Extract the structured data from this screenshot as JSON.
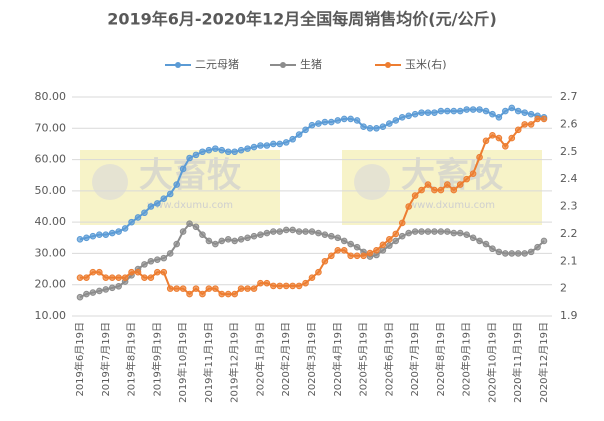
{
  "chart_data": {
    "type": "line",
    "title": "2019年6月-2020年12月全国每周销售均价(元/公斤)",
    "watermarks": [
      "大畜牧",
      "www.dxumu.com"
    ],
    "categories": [
      "2019年6月19日",
      null,
      null,
      null,
      "2019年7月19日",
      null,
      null,
      null,
      "2019年8月19日",
      null,
      null,
      null,
      "2019年9月19日",
      null,
      null,
      null,
      "2019年10月19日",
      null,
      null,
      null,
      "2019年11月19日",
      null,
      null,
      null,
      "2019年12月19日",
      null,
      null,
      null,
      "2020年1月19日",
      null,
      null,
      null,
      "2020年2月19日",
      null,
      null,
      null,
      "2020年3月19日",
      null,
      null,
      null,
      "2020年4月19日",
      null,
      null,
      null,
      "2020年5月19日",
      null,
      null,
      null,
      "2020年6月19日",
      null,
      null,
      null,
      "2020年7月19日",
      null,
      null,
      null,
      "2020年8月19日",
      null,
      null,
      null,
      "2020年9月19日",
      null,
      null,
      null,
      "2020年10月19日",
      null,
      null,
      null,
      "2020年11月19日",
      null,
      null,
      null,
      "2020年12月19日"
    ],
    "series": [
      {
        "name": "二元母猪",
        "color": "#5b9bd5",
        "values": [
          34.5,
          35,
          35.5,
          36,
          36,
          36.5,
          37,
          38,
          40,
          41.5,
          43,
          45,
          46,
          47.5,
          49,
          52,
          57,
          60.5,
          61.5,
          62.5,
          63,
          63.5,
          63,
          62.5,
          62.5,
          63,
          63.5,
          64,
          64.5,
          64.5,
          65,
          65,
          65.5,
          66.5,
          68,
          69.5,
          71,
          71.5,
          72,
          72,
          72.5,
          73,
          73,
          72.5,
          70.5,
          70,
          70,
          70.5,
          71.5,
          72.5,
          73.5,
          74,
          74.5,
          75,
          75,
          75,
          75.5,
          75.5,
          75.5,
          75.5,
          76,
          76,
          76,
          75.5,
          74.5,
          73.5,
          75.5,
          76.5,
          75.5,
          75,
          74.5,
          74,
          73.5
        ]
      },
      {
        "name": "生猪",
        "color": "#8c8c8c",
        "values": [
          16,
          17,
          17.5,
          18,
          18.5,
          19,
          19.5,
          21,
          23,
          25,
          26.5,
          27.5,
          28,
          28.5,
          30,
          33,
          37,
          39.5,
          38.5,
          36,
          34,
          33,
          34,
          34.5,
          34,
          34.5,
          35,
          35.5,
          36,
          36.5,
          37,
          37,
          37.5,
          37.5,
          37,
          37,
          37,
          36.5,
          36,
          35.5,
          35,
          34,
          33,
          32,
          30.5,
          29,
          29.5,
          31,
          32.5,
          34,
          35.5,
          36.5,
          37,
          37,
          37,
          37,
          37,
          37,
          36.5,
          36.5,
          36,
          35,
          34,
          33,
          31.5,
          30.5,
          30,
          30,
          30,
          30,
          30.5,
          32,
          34
        ]
      },
      {
        "name": "玉米(右)",
        "color": "#ed7d31",
        "axis": "y2",
        "values": [
          2.04,
          2.04,
          2.06,
          2.06,
          2.04,
          2.04,
          2.04,
          2.04,
          2.06,
          2.06,
          2.04,
          2.04,
          2.06,
          2.06,
          2.0,
          2.0,
          2.0,
          1.98,
          2.0,
          1.98,
          2.0,
          2.0,
          1.98,
          1.98,
          1.98,
          2.0,
          2.0,
          2.0,
          2.02,
          2.02,
          2.01,
          2.01,
          2.01,
          2.01,
          2.01,
          2.02,
          2.04,
          2.06,
          2.1,
          2.12,
          2.14,
          2.14,
          2.12,
          2.12,
          2.12,
          2.13,
          2.14,
          2.16,
          2.18,
          2.2,
          2.24,
          2.3,
          2.34,
          2.36,
          2.38,
          2.36,
          2.36,
          2.38,
          2.36,
          2.38,
          2.4,
          2.42,
          2.48,
          2.54,
          2.56,
          2.55,
          2.52,
          2.55,
          2.58,
          2.6,
          2.6,
          2.62,
          2.62
        ]
      }
    ],
    "ylim": [
      10,
      80
    ],
    "yticks": [
      {
        "value": 10,
        "label": "10.00"
      },
      {
        "value": 20,
        "label": "20.00"
      },
      {
        "value": 30,
        "label": "30.00"
      },
      {
        "value": 40,
        "label": "40.00"
      },
      {
        "value": 50,
        "label": "50.00"
      },
      {
        "value": 60,
        "label": "60.00"
      },
      {
        "value": 70,
        "label": "70.00"
      },
      {
        "value": 80,
        "label": "80.00"
      }
    ],
    "y2lim": [
      1.9,
      2.7
    ],
    "y2ticks": [
      1.9,
      2,
      2.1,
      2.2,
      2.3,
      2.4,
      2.5,
      2.6,
      2.7
    ],
    "grid": true
  }
}
